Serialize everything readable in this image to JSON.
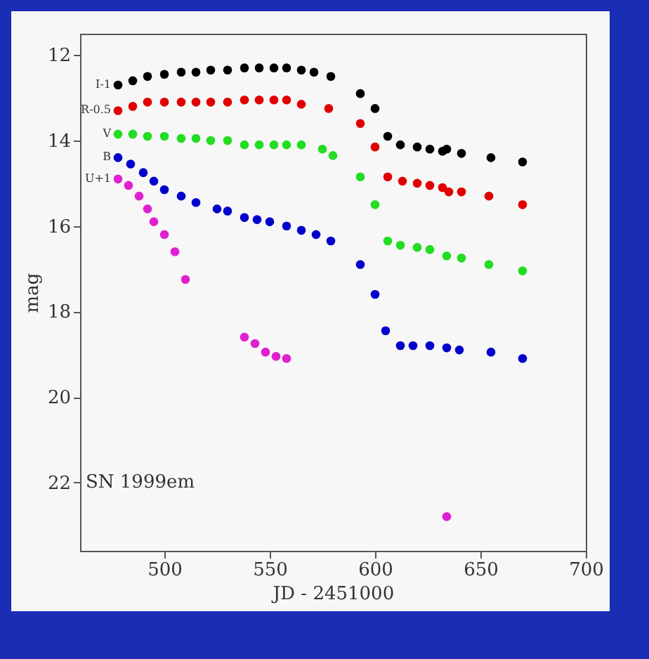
{
  "chart_data": {
    "type": "scatter",
    "xlabel": "JD - 2451000",
    "ylabel": "mag",
    "xlim": [
      460,
      700
    ],
    "ylim": [
      23.6,
      11.5
    ],
    "xticks": [
      500,
      550,
      600,
      650,
      700
    ],
    "yticks": [
      12,
      14,
      16,
      18,
      20,
      22
    ],
    "grid": false,
    "legend": false,
    "marker": "circle",
    "annotations": [
      "SN 1999em"
    ],
    "series": [
      {
        "name": "I-1",
        "color": "#000000",
        "x": [
          478,
          485,
          492,
          500,
          508,
          515,
          522,
          530,
          538,
          545,
          552,
          558,
          565,
          571,
          579,
          593,
          600,
          606,
          612,
          620,
          626,
          632,
          634,
          641,
          655,
          670
        ],
        "values": [
          12.7,
          12.6,
          12.5,
          12.45,
          12.4,
          12.4,
          12.35,
          12.35,
          12.3,
          12.3,
          12.3,
          12.3,
          12.35,
          12.4,
          12.5,
          12.9,
          13.25,
          13.9,
          14.1,
          14.15,
          14.2,
          14.25,
          14.2,
          14.3,
          14.4,
          14.5
        ]
      },
      {
        "name": "R-0.5",
        "color": "#e00000",
        "x": [
          478,
          485,
          492,
          500,
          508,
          515,
          522,
          530,
          538,
          545,
          552,
          558,
          565,
          578,
          593,
          600,
          606,
          613,
          620,
          626,
          632,
          635,
          641,
          654,
          670
        ],
        "values": [
          13.3,
          13.2,
          13.1,
          13.1,
          13.1,
          13.1,
          13.1,
          13.1,
          13.05,
          13.05,
          13.05,
          13.05,
          13.15,
          13.25,
          13.6,
          14.15,
          14.85,
          14.95,
          15.0,
          15.05,
          15.1,
          15.2,
          15.2,
          15.3,
          15.5
        ]
      },
      {
        "name": "V",
        "color": "#22dd22",
        "x": [
          478,
          485,
          492,
          500,
          508,
          515,
          522,
          530,
          538,
          545,
          552,
          558,
          565,
          575,
          580,
          593,
          600,
          606,
          612,
          620,
          626,
          634,
          641,
          654,
          670
        ],
        "values": [
          13.85,
          13.85,
          13.9,
          13.9,
          13.95,
          13.95,
          14.0,
          14.0,
          14.1,
          14.1,
          14.1,
          14.1,
          14.1,
          14.2,
          14.35,
          14.85,
          15.5,
          16.35,
          16.45,
          16.5,
          16.55,
          16.7,
          16.75,
          16.9,
          17.05
        ]
      },
      {
        "name": "B",
        "color": "#0000cc",
        "x": [
          478,
          484,
          490,
          495,
          500,
          508,
          515,
          525,
          530,
          538,
          544,
          550,
          558,
          565,
          572,
          579,
          593,
          600,
          605,
          612,
          618,
          626,
          634,
          640,
          655,
          670
        ],
        "values": [
          14.4,
          14.55,
          14.75,
          14.95,
          15.15,
          15.3,
          15.45,
          15.6,
          15.65,
          15.8,
          15.85,
          15.9,
          16.0,
          16.1,
          16.2,
          16.35,
          16.9,
          17.6,
          18.45,
          18.8,
          18.8,
          18.8,
          18.85,
          18.9,
          18.95,
          19.1
        ]
      },
      {
        "name": "U+1",
        "color": "#e020d0",
        "x": [
          478,
          483,
          488,
          492,
          495,
          500,
          505,
          510,
          538,
          543,
          548,
          553,
          558,
          634
        ],
        "values": [
          14.9,
          15.05,
          15.3,
          15.6,
          15.9,
          16.2,
          16.6,
          17.25,
          18.6,
          18.75,
          18.95,
          19.05,
          19.1,
          22.8
        ]
      }
    ]
  }
}
